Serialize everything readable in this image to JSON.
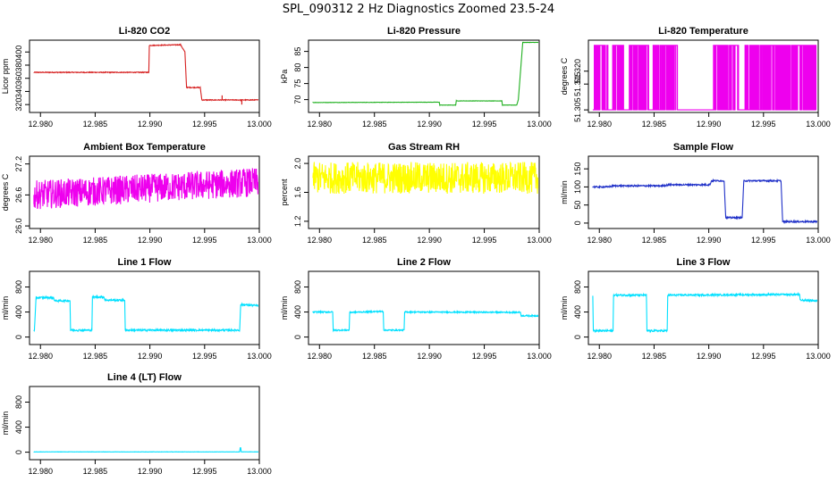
{
  "page_title": "SPL_090312  2 Hz Diagnostics Zoomed 23.5-24",
  "chart_data": [
    {
      "type": "line",
      "title": "Li-820 CO2",
      "ylabel": "Licor ppm",
      "color": "#d62020",
      "xlim": [
        12.979,
        13.0
      ],
      "ylim": [
        308,
        418
      ],
      "xticks": [
        "12.980",
        "12.985",
        "12.990",
        "12.995",
        "13.000"
      ],
      "xtick_values": [
        12.98,
        12.985,
        12.99,
        12.995,
        13.0
      ],
      "yticks": [
        "320",
        "340",
        "360",
        "380",
        "400"
      ],
      "ytick_values": [
        320,
        340,
        360,
        380,
        400
      ],
      "noise": 0.6,
      "x": [
        12.9794,
        12.9899,
        12.98995,
        12.9928,
        12.9932,
        12.99335,
        12.9946,
        12.99475,
        12.99995
      ],
      "y": [
        369,
        369,
        410,
        411,
        400,
        346,
        346,
        327,
        327
      ],
      "spikes": [
        [
          12.9966,
          334
        ],
        [
          12.9983,
          325
        ],
        [
          12.9984,
          320
        ]
      ]
    },
    {
      "type": "line",
      "title": "Li-820 Pressure",
      "ylabel": "kPa",
      "color": "#20b020",
      "xlim": [
        12.979,
        13.0
      ],
      "ylim": [
        66,
        88.5
      ],
      "xticks": [
        "12.980",
        "12.985",
        "12.990",
        "12.995",
        "13.000"
      ],
      "xtick_values": [
        12.98,
        12.985,
        12.99,
        12.995,
        13.0
      ],
      "yticks": [
        "70",
        "75",
        "80",
        "85"
      ],
      "ytick_values": [
        70,
        75,
        80,
        85
      ],
      "noise": 0.05,
      "x": [
        12.9794,
        12.9909,
        12.99095,
        12.9924,
        12.99245,
        12.9966,
        12.99665,
        12.99795,
        12.9981,
        12.9985,
        12.99995
      ],
      "y": [
        69.1,
        69.2,
        68.3,
        68.3,
        69.6,
        69.6,
        68.3,
        68.3,
        70,
        87.8,
        87.8
      ]
    },
    {
      "type": "line",
      "title": "Li-820 Temperature",
      "ylabel": "degrees C",
      "color": "#ee00ee",
      "xlim": [
        12.979,
        13.0
      ],
      "ylim": [
        51.304,
        51.332
      ],
      "xticks": [
        "12.980",
        "12.985",
        "12.990",
        "12.995",
        "13.000"
      ],
      "xtick_values": [
        12.98,
        12.985,
        12.99,
        12.995,
        13.0
      ],
      "yticks": [
        "51.305",
        "51.315",
        "51.320"
      ],
      "ytick_values": [
        51.305,
        51.315,
        51.32
      ],
      "baseline": 51.305,
      "high": 51.33,
      "toggle_ranges": [
        [
          12.9795,
          12.9808
        ],
        [
          12.9812,
          12.9822
        ],
        [
          12.9827,
          12.9845
        ],
        [
          12.9849,
          12.9872
        ],
        [
          12.9904,
          12.9927
        ],
        [
          12.9933,
          12.9998
        ]
      ]
    },
    {
      "type": "line",
      "title": "Ambient Box Temperature",
      "ylabel": "degrees C",
      "color": "#ee00ee",
      "xlim": [
        12.979,
        13.0
      ],
      "ylim": [
        25.95,
        27.35
      ],
      "xticks": [
        "12.980",
        "12.985",
        "12.990",
        "12.995",
        "13.000"
      ],
      "xtick_values": [
        12.98,
        12.985,
        12.99,
        12.995,
        13.0
      ],
      "yticks": [
        "26.0",
        "26.6",
        "27.2"
      ],
      "ytick_values": [
        26.0,
        26.6,
        27.2
      ],
      "noise": 0.28,
      "x": [
        12.9794,
        12.9999
      ],
      "y": [
        26.6,
        26.85
      ]
    },
    {
      "type": "line",
      "title": "Gas Stream RH",
      "ylabel": "percent",
      "color": "#ffff00",
      "xlim": [
        12.979,
        13.0
      ],
      "ylim": [
        1.1,
        2.1
      ],
      "xticks": [
        "12.980",
        "12.985",
        "12.990",
        "12.995",
        "13.000"
      ],
      "xtick_values": [
        12.98,
        12.985,
        12.99,
        12.995,
        13.0
      ],
      "yticks": [
        "1.2",
        "1.6",
        "2.0"
      ],
      "ytick_values": [
        1.2,
        1.6,
        2.0
      ],
      "noise": 0.22,
      "x": [
        12.9794,
        12.9999
      ],
      "y": [
        1.8,
        1.8
      ]
    },
    {
      "type": "line",
      "title": "Sample Flow",
      "ylabel": "ml/min",
      "color": "#1f30c8",
      "xlim": [
        12.979,
        13.0
      ],
      "ylim": [
        -15,
        185
      ],
      "xticks": [
        "12.980",
        "12.985",
        "12.990",
        "12.995",
        "13.000"
      ],
      "xtick_values": [
        12.98,
        12.985,
        12.99,
        12.995,
        13.0
      ],
      "yticks": [
        "0",
        "50",
        "100",
        "150"
      ],
      "ytick_values": [
        0,
        50,
        100,
        150
      ],
      "noise": 2,
      "x": [
        12.9794,
        12.9808,
        12.9813,
        12.9858,
        12.9864,
        12.9901,
        12.99025,
        12.9914,
        12.99155,
        12.99305,
        12.9932,
        12.9966,
        12.99675,
        12.99995
      ],
      "y": [
        100,
        100,
        103,
        103,
        106,
        106,
        117,
        117,
        15,
        15,
        117,
        117,
        4,
        4
      ]
    },
    {
      "type": "line",
      "title": "Line 1 Flow",
      "ylabel": "ml/min",
      "color": "#00e0ff",
      "xlim": [
        12.979,
        13.0
      ],
      "ylim": [
        -120,
        1050
      ],
      "xticks": [
        "12.980",
        "12.985",
        "12.990",
        "12.995",
        "13.000"
      ],
      "xtick_values": [
        12.98,
        12.985,
        12.99,
        12.995,
        13.0
      ],
      "yticks": [
        "0",
        "400",
        "800"
      ],
      "ytick_values": [
        0,
        400,
        800
      ],
      "noise": 14,
      "x": [
        12.9794,
        12.97945,
        12.9796,
        12.9812,
        12.9813,
        12.9827,
        12.98275,
        12.9847,
        12.98475,
        12.9858,
        12.9859,
        12.9877,
        12.98775,
        12.9982,
        12.9983,
        12.99995
      ],
      "y": [
        110,
        110,
        630,
        630,
        580,
        580,
        110,
        110,
        640,
        640,
        590,
        590,
        110,
        110,
        520,
        500
      ]
    },
    {
      "type": "line",
      "title": "Line 2 Flow",
      "ylabel": "ml/min",
      "color": "#00e0ff",
      "xlim": [
        12.979,
        13.0
      ],
      "ylim": [
        -120,
        1050
      ],
      "xticks": [
        "12.980",
        "12.985",
        "12.990",
        "12.995",
        "13.000"
      ],
      "xtick_values": [
        12.98,
        12.985,
        12.99,
        12.995,
        13.0
      ],
      "yticks": [
        "0",
        "400",
        "800"
      ],
      "ytick_values": [
        0,
        400,
        800
      ],
      "noise": 10,
      "x": [
        12.9794,
        12.9812,
        12.98125,
        12.9827,
        12.98275,
        12.9858,
        12.98585,
        12.9877,
        12.98775,
        12.9983,
        12.99835,
        12.99995
      ],
      "y": [
        400,
        400,
        110,
        110,
        395,
        410,
        110,
        110,
        400,
        395,
        340,
        340
      ]
    },
    {
      "type": "line",
      "title": "Line 3 Flow",
      "ylabel": "ml/min",
      "color": "#00e0ff",
      "xlim": [
        12.979,
        13.0
      ],
      "ylim": [
        -120,
        1050
      ],
      "xticks": [
        "12.980",
        "12.985",
        "12.990",
        "12.995",
        "13.000"
      ],
      "xtick_values": [
        12.98,
        12.985,
        12.99,
        12.995,
        13.0
      ],
      "yticks": [
        "0",
        "400",
        "800"
      ],
      "ytick_values": [
        0,
        400,
        800
      ],
      "noise": 14,
      "x": [
        12.9794,
        12.97945,
        12.9796,
        12.98125,
        12.9813,
        12.9843,
        12.98435,
        12.9862,
        12.98625,
        12.9983,
        12.99835,
        12.99995
      ],
      "y": [
        660,
        100,
        100,
        100,
        670,
        670,
        100,
        100,
        670,
        680,
        590,
        580
      ]
    },
    {
      "type": "line",
      "title": "Line 4 (LT) Flow",
      "ylabel": "ml/min",
      "color": "#00e0ff",
      "xlim": [
        12.979,
        13.0
      ],
      "ylim": [
        -120,
        1050
      ],
      "xticks": [
        "12.980",
        "12.985",
        "12.990",
        "12.995",
        "13.000"
      ],
      "xtick_values": [
        12.98,
        12.985,
        12.99,
        12.995,
        13.0
      ],
      "yticks": [
        "0",
        "400",
        "800"
      ],
      "ytick_values": [
        0,
        400,
        800
      ],
      "noise": 2,
      "x": [
        12.9794,
        12.9982,
        12.99825,
        12.9983,
        12.99835,
        12.99995
      ],
      "y": [
        5,
        5,
        70,
        70,
        5,
        5
      ]
    }
  ]
}
